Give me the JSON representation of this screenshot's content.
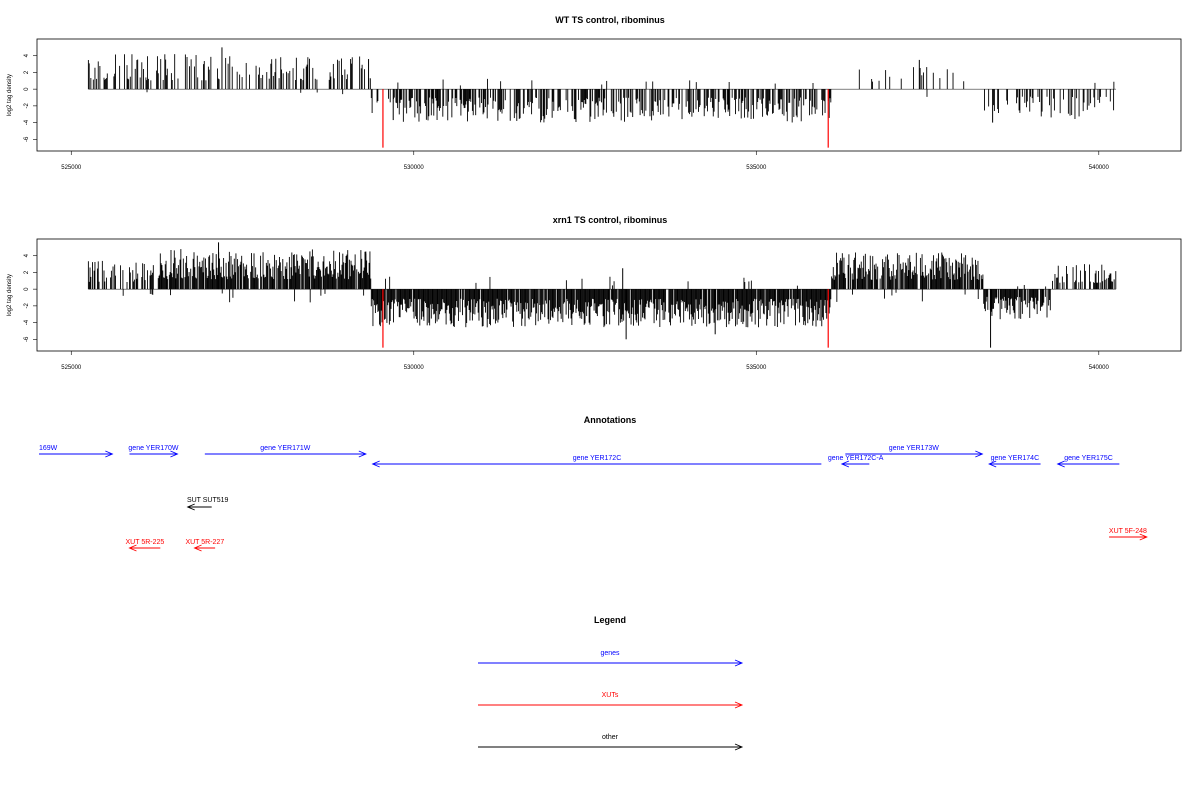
{
  "chart_data": [
    {
      "type": "bar",
      "title": "WT TS control, ribominus",
      "ylabel": "log2 tag density",
      "xlim": [
        524500,
        541200
      ],
      "ylim": [
        -7.4,
        6
      ],
      "x_ticks": [
        525000,
        530000,
        535000,
        540000
      ],
      "y_ticks": [
        4,
        2,
        0,
        -2,
        -4,
        -6
      ],
      "marker_color": "#ff0000",
      "bar_color": "#000000",
      "region_start": 525250,
      "region_end": 540250,
      "markers": [
        {
          "x": 529550,
          "y": -7.0
        },
        {
          "x": 536050,
          "y": -7.0
        }
      ],
      "segments": [
        {
          "from": 525250,
          "to": 529380,
          "sign": 1,
          "max": 4.2,
          "density": 0.35
        },
        {
          "from": 529380,
          "to": 536100,
          "sign": -1,
          "max": 4.0,
          "density": 0.55
        },
        {
          "from": 536100,
          "to": 536420,
          "sign": 0,
          "max": 0,
          "density": 0
        },
        {
          "from": 536420,
          "to": 538320,
          "sign": 1,
          "max": 3.2,
          "density": 0.12
        },
        {
          "from": 538320,
          "to": 540250,
          "sign": -1,
          "max": 3.6,
          "density": 0.3
        }
      ],
      "peaks": [
        {
          "x": 527200,
          "y": 5.0
        },
        {
          "x": 529340,
          "y": 3.6
        },
        {
          "x": 529700,
          "y": -3.7
        },
        {
          "x": 537380,
          "y": 3.5
        },
        {
          "x": 538450,
          "y": -4.0
        }
      ]
    },
    {
      "type": "bar",
      "title": "xrn1 TS control, ribominus",
      "ylabel": "log2 tag density",
      "xlim": [
        524500,
        541200
      ],
      "ylim": [
        -7.4,
        6
      ],
      "x_ticks": [
        525000,
        530000,
        535000,
        540000
      ],
      "y_ticks": [
        4,
        2,
        0,
        -2,
        -4,
        -6
      ],
      "marker_color": "#ff0000",
      "bar_color": "#000000",
      "region_start": 525250,
      "region_end": 540250,
      "markers": [
        {
          "x": 529550,
          "y": -7.0
        },
        {
          "x": 536050,
          "y": -7.0
        }
      ],
      "segments": [
        {
          "from": 525250,
          "to": 526300,
          "sign": 1,
          "max": 3.4,
          "density": 0.5
        },
        {
          "from": 526300,
          "to": 529380,
          "sign": 1,
          "max": 4.8,
          "density": 0.9
        },
        {
          "from": 529380,
          "to": 536100,
          "sign": -1,
          "max": 4.6,
          "density": 0.92
        },
        {
          "from": 536100,
          "to": 538320,
          "sign": 1,
          "max": 4.4,
          "density": 0.85
        },
        {
          "from": 538320,
          "to": 539300,
          "sign": -1,
          "max": 3.6,
          "density": 0.8
        },
        {
          "from": 539300,
          "to": 540250,
          "sign": 1,
          "max": 3.0,
          "density": 0.55
        }
      ],
      "peaks": [
        {
          "x": 527150,
          "y": 5.6
        },
        {
          "x": 529300,
          "y": 4.5
        },
        {
          "x": 533050,
          "y": 2.5
        },
        {
          "x": 533100,
          "y": -6.0
        },
        {
          "x": 538420,
          "y": -7.0
        },
        {
          "x": 534400,
          "y": -5.4
        }
      ]
    }
  ],
  "annotations": {
    "title": "Annotations",
    "genes": [
      {
        "label": "169W",
        "from": 524500,
        "to": 525600,
        "dir": "right",
        "row": 0,
        "color": "#0000ff"
      },
      {
        "label": "gene YER170W",
        "from": 525850,
        "to": 526550,
        "dir": "right",
        "row": 0,
        "color": "#0000ff"
      },
      {
        "label": "gene YER171W",
        "from": 526950,
        "to": 529300,
        "dir": "right",
        "row": 0,
        "color": "#0000ff"
      },
      {
        "label": "gene YER172C",
        "from": 529400,
        "to": 535950,
        "dir": "left",
        "row": 1,
        "color": "#0000ff"
      },
      {
        "label": "gene YER172C-A",
        "from": 536250,
        "to": 536650,
        "dir": "left",
        "row": 1,
        "color": "#0000ff"
      },
      {
        "label": "gene YER173W",
        "from": 536300,
        "to": 538300,
        "dir": "right",
        "row": 0,
        "color": "#0000ff"
      },
      {
        "label": "gene YER174C",
        "from": 538400,
        "to": 539150,
        "dir": "left",
        "row": 1,
        "color": "#0000ff"
      },
      {
        "label": "gene YER175C",
        "from": 539400,
        "to": 540300,
        "dir": "left",
        "row": 1,
        "color": "#0000ff"
      }
    ],
    "other": [
      {
        "label": "SUT SUT519",
        "from": 526700,
        "to": 527050,
        "dir": "left",
        "color": "#000000"
      }
    ],
    "xuts": [
      {
        "label": "XUT 5R-225",
        "from": 525850,
        "to": 526300,
        "dir": "left",
        "color": "#ff0000"
      },
      {
        "label": "XUT 5R-227",
        "from": 526800,
        "to": 527100,
        "dir": "left",
        "color": "#ff0000"
      },
      {
        "label": "XUT 5F-248",
        "from": 540150,
        "to": 540700,
        "dir": "right",
        "color": "#ff0000"
      }
    ]
  },
  "legend": {
    "title": "Legend",
    "items": [
      {
        "label": "genes",
        "color": "#0000ff"
      },
      {
        "label": "XUTs",
        "color": "#ff0000"
      },
      {
        "label": "other",
        "color": "#000000"
      }
    ]
  }
}
